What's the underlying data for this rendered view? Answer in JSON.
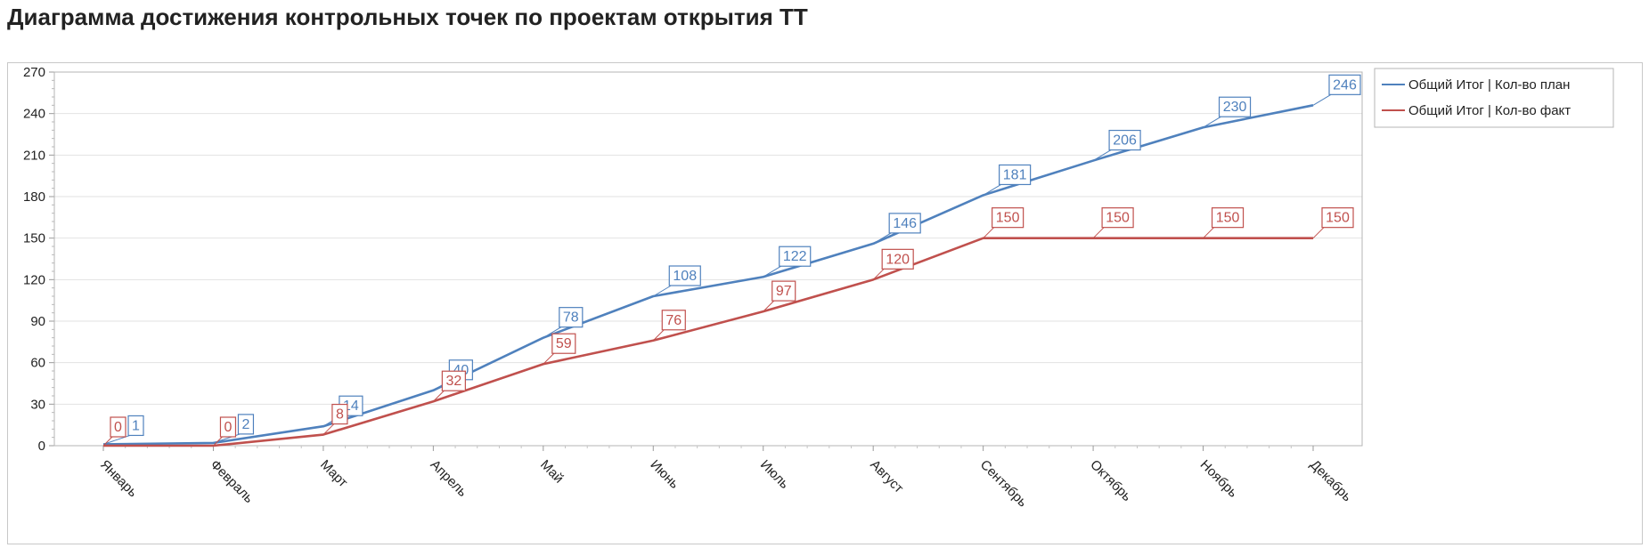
{
  "page": {
    "title": "Диаграмма достижения контрольных точек по проектам открытия ТТ"
  },
  "chart_data": {
    "type": "line",
    "title": "",
    "xlabel": "",
    "ylabel": "",
    "categories": [
      "Январь",
      "Февраль",
      "Март",
      "Апрель",
      "Май",
      "Июнь",
      "Июль",
      "Август",
      "Сентябрь",
      "Октябрь",
      "Ноябрь",
      "Декабрь"
    ],
    "ylim": [
      0,
      270
    ],
    "yticks": [
      0,
      30,
      60,
      90,
      120,
      150,
      180,
      210,
      240,
      270
    ],
    "grid": true,
    "legend_position": "top-right",
    "data_labels": true,
    "series": [
      {
        "name": "Общий Итог | Кол-во план",
        "color": "#4f81bd",
        "values": [
          1,
          2,
          14,
          40,
          78,
          108,
          122,
          146,
          181,
          206,
          230,
          246
        ]
      },
      {
        "name": "Общий Итог | Кол-во факт",
        "color": "#c0504d",
        "values": [
          0,
          0,
          8,
          32,
          59,
          76,
          97,
          120,
          150,
          150,
          150,
          150
        ]
      }
    ]
  }
}
